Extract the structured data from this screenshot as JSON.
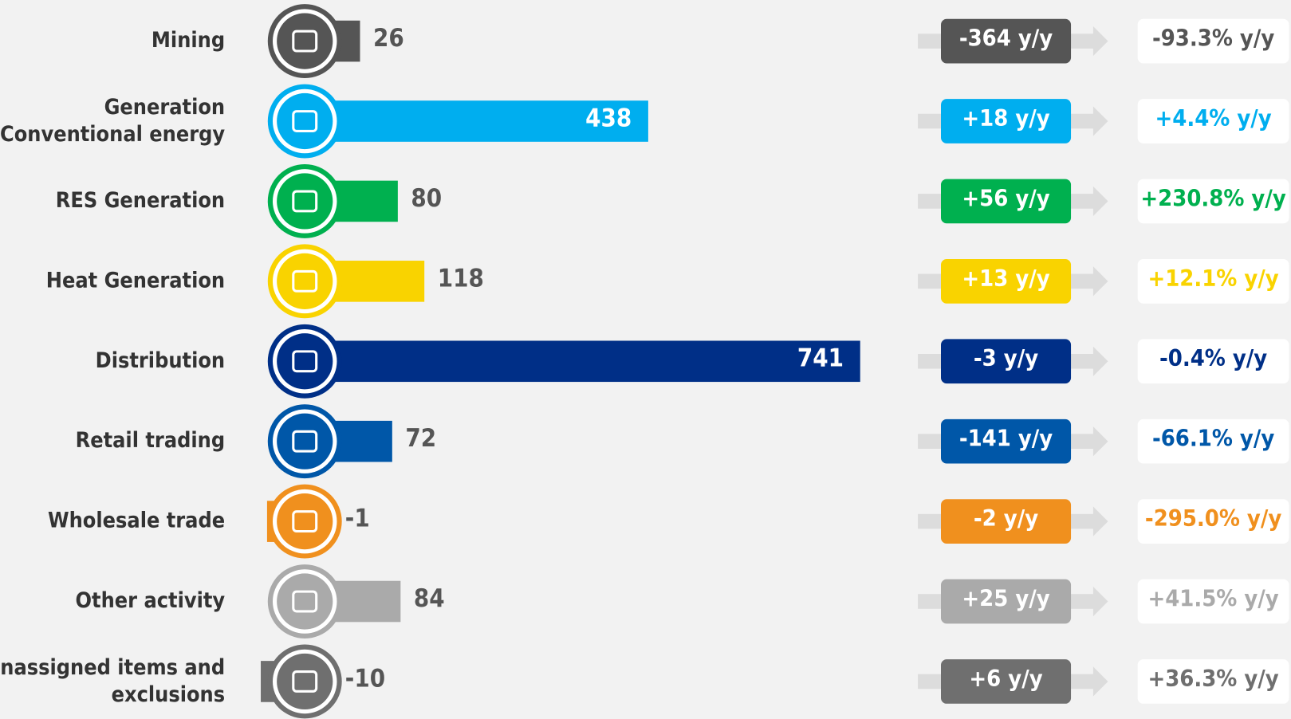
{
  "chart_data": {
    "type": "bar",
    "categories": [
      "Mining",
      "Generation\nConventional energy",
      "RES Generation",
      "Heat Generation",
      "Distribution",
      "Retail trading",
      "Wholesale trade",
      "Other activity",
      "Unassigned items and\nexclusions"
    ],
    "values": [
      26,
      438,
      80,
      118,
      741,
      72,
      -1,
      84,
      -10
    ],
    "colors": [
      "#555555",
      "#00aeef",
      "#00b04f",
      "#f9d300",
      "#002f87",
      "#0057a8",
      "#f0901e",
      "#aaaaaa",
      "#6f6f6f"
    ],
    "yoy_change_labels": [
      "-364 y/y",
      "+18 y/y",
      "+56 y/y",
      "+13 y/y",
      "-3 y/y",
      "-141 y/y",
      "-2 y/y",
      "+25 y/y",
      "+6 y/y"
    ],
    "yoy_pct_labels": [
      "-93.3% y/y",
      "+4.4% y/y",
      "+230.8% y/y",
      "+12.1% y/y",
      "-0.4% y/y",
      "-66.1% y/y",
      "-295.0% y/y",
      "+41.5% y/y",
      "+36.3% y/y"
    ]
  }
}
